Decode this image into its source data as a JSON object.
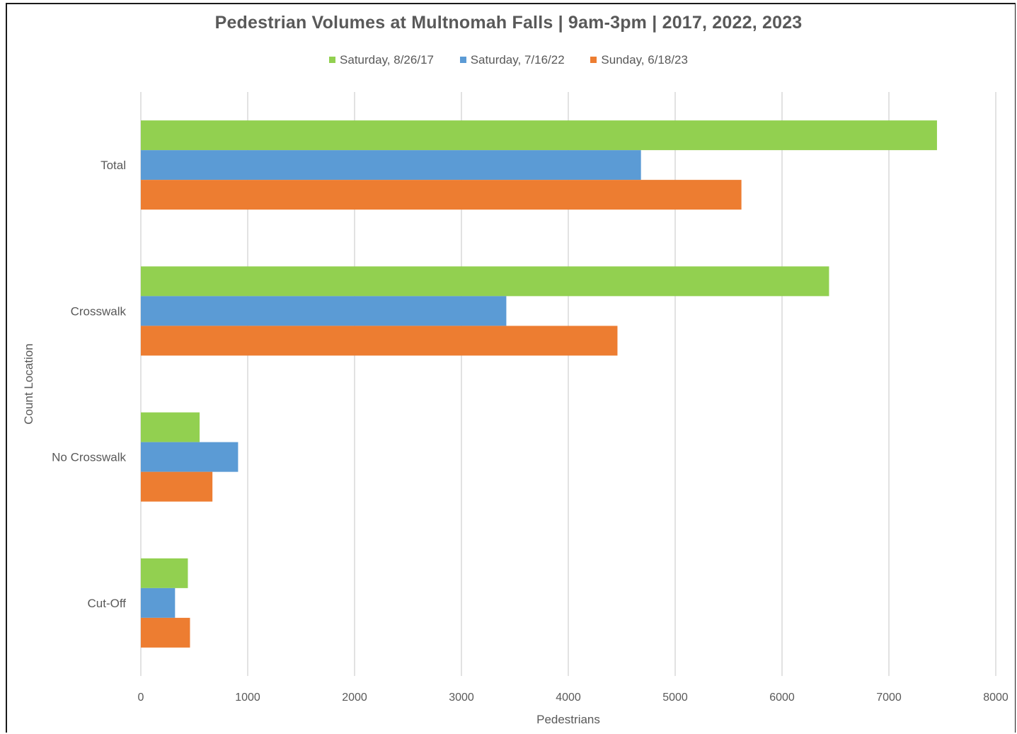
{
  "chart_data": {
    "type": "bar",
    "orientation": "horizontal",
    "title": "Pedestrian Volumes at Multnomah Falls | 9am-3pm | 2017, 2022, 2023",
    "xlabel": "Pedestrians",
    "ylabel": "Count Location",
    "xlim": [
      0,
      8000
    ],
    "xticks": [
      "0",
      "1000",
      "2000",
      "3000",
      "4000",
      "5000",
      "6000",
      "7000",
      "8000"
    ],
    "categories": [
      "Total",
      "Crosswalk",
      "No Crosswalk",
      "Cut-Off"
    ],
    "series": [
      {
        "name": "Saturday, 8/26/17",
        "color": "#92d050",
        "values": [
          7450,
          6440,
          550,
          440
        ]
      },
      {
        "name": "Saturday, 7/16/22",
        "color": "#5b9bd5",
        "values": [
          4680,
          3420,
          910,
          320
        ]
      },
      {
        "name": "Sunday, 6/18/23",
        "color": "#ed7d31",
        "values": [
          5620,
          4460,
          670,
          460
        ]
      }
    ],
    "grid": true,
    "legend_position": "top"
  }
}
